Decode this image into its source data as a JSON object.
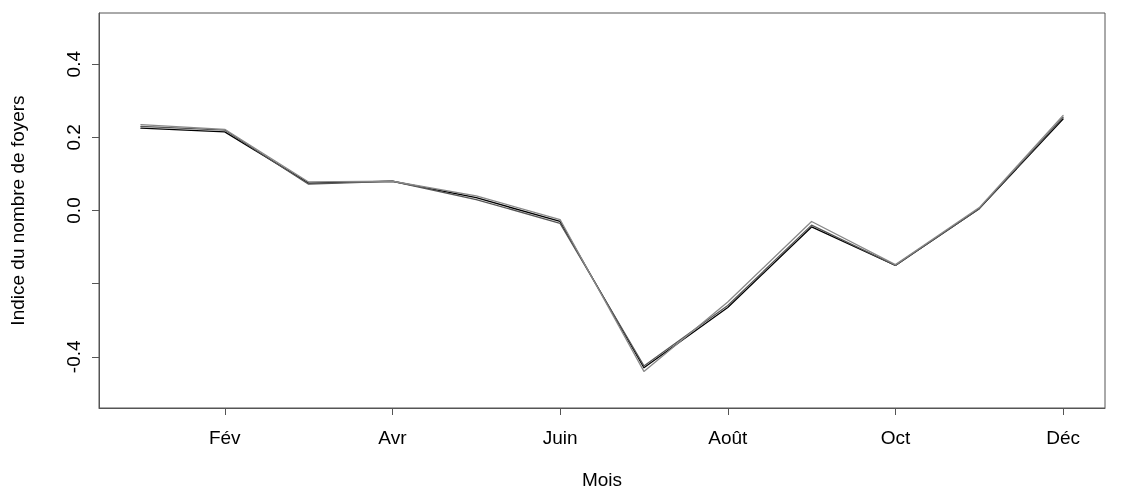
{
  "chart_data": {
    "type": "line",
    "xlabel": "Mois",
    "ylabel": "Indice du nombre de foyers",
    "categories": [
      null,
      "Fév",
      null,
      "Avr",
      null,
      "Juin",
      null,
      "Août",
      null,
      "Oct",
      null,
      "Déc"
    ],
    "series": [
      {
        "color": "#000000",
        "values": [
          0.225,
          0.215,
          0.075,
          0.08,
          0.035,
          -0.03,
          -0.43,
          -0.265,
          -0.045,
          -0.15,
          0.005,
          0.25
        ]
      },
      {
        "color": "#555555",
        "values": [
          0.23,
          0.22,
          0.072,
          0.08,
          0.03,
          -0.035,
          -0.425,
          -0.26,
          -0.04,
          -0.15,
          0.005,
          0.255
        ]
      },
      {
        "color": "#888888",
        "values": [
          0.235,
          0.222,
          0.078,
          0.08,
          0.04,
          -0.025,
          -0.44,
          -0.25,
          -0.03,
          -0.148,
          0.008,
          0.26
        ]
      }
    ],
    "ylim": [
      -0.54,
      0.54
    ],
    "yticks": [
      {
        "value": -0.4,
        "label": "-0.4"
      },
      {
        "value": -0.2,
        "label": null
      },
      {
        "value": 0,
        "label": "0.0"
      },
      {
        "value": 0.2,
        "label": "0.2"
      },
      {
        "value": 0.4,
        "label": "0.4"
      }
    ],
    "grid": false,
    "marker": "none",
    "line_style": "solid"
  }
}
